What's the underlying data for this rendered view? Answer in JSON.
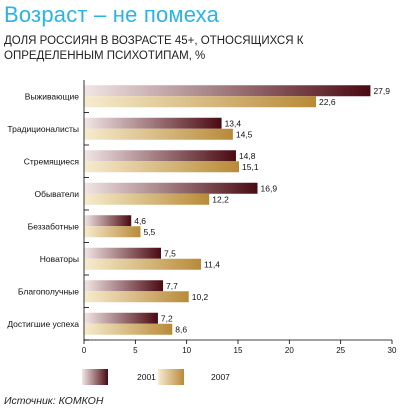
{
  "title": "Возраст – не помеха",
  "subtitle": "ДОЛЯ РОССИЯН В ВОЗРАСТЕ 45+, ОТНОСЯЩИХСЯ К ОПРЕДЕЛЕННЫМ ПСИХОТИПАМ, %",
  "source": "Источник: КОМКОН",
  "colors": {
    "title": "#2ab3e6",
    "series_2001_dark": "#4a0a12",
    "series_2001_light": "#f2e6e6",
    "series_2007_dark": "#b88a38",
    "series_2007_light": "#f7eccf"
  },
  "chart_data": {
    "type": "bar",
    "orientation": "horizontal",
    "title": "Возраст – не помеха",
    "subtitle": "ДОЛЯ РОССИЯН В ВОЗРАСТЕ 45+, ОТНОСЯЩИХСЯ К ОПРЕДЕЛЕННЫМ ПСИХОТИПАМ, %",
    "categories": [
      "Выживающие",
      "Традиционалисты",
      "Стремящиеся",
      "Обыватели",
      "Беззаботные",
      "Новаторы",
      "Благополучные",
      "Достигшие успеха"
    ],
    "series": [
      {
        "name": "2001",
        "values": [
          27.9,
          13.4,
          14.8,
          16.9,
          4.6,
          7.5,
          7.7,
          7.2
        ],
        "labels": [
          "27,9",
          "13,4",
          "14,8",
          "16,9",
          "4,6",
          "7,5",
          "7,7",
          "7,2"
        ]
      },
      {
        "name": "2007",
        "values": [
          22.6,
          14.5,
          15.1,
          12.2,
          5.5,
          11.4,
          10.2,
          8.6
        ],
        "labels": [
          "22,6",
          "14,5",
          "15,1",
          "12,2",
          "5,5",
          "11,4",
          "10,2",
          "8,6"
        ]
      }
    ],
    "xlim": [
      0,
      30
    ],
    "ticks": [
      "0",
      "5",
      "10",
      "15",
      "20",
      "25",
      "30"
    ],
    "xlabel": "",
    "ylabel": "",
    "grid": false,
    "legend": "bottom"
  }
}
